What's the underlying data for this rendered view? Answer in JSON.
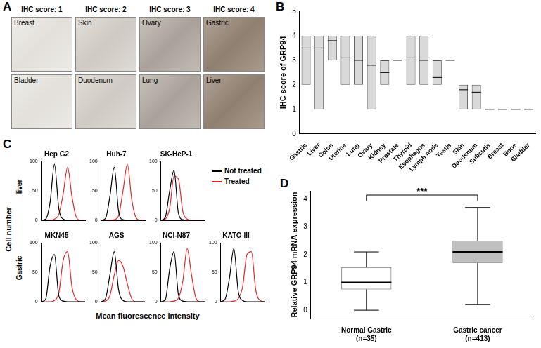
{
  "panel_labels": [
    "A",
    "B",
    "C",
    "D"
  ],
  "panel_a": {
    "scores": [
      "IHC score: 1",
      "IHC score: 2",
      "IHC score: 3",
      "IHC score: 4"
    ],
    "tissues": [
      [
        "Breast",
        "Skin",
        "Ovary",
        "Gastric"
      ],
      [
        "Bladder",
        "Duodenum",
        "Lung",
        "Liver"
      ]
    ]
  },
  "panel_c": {
    "y_label": "Cell number",
    "x_label": "Mean fluorescence intensity",
    "row_labels": [
      "liver",
      "Gastric"
    ]
  },
  "chart_data": [
    {
      "type": "box",
      "y_label": "IHC score of GRP94",
      "categories": [
        "Gastric",
        "Liver",
        "Colon",
        "Uterine",
        "Lung",
        "Ovary",
        "Kidney",
        "Prostate",
        "Thyroid",
        "Esophagus",
        "Lymph node",
        "Testis",
        "Skin",
        "Duodenum",
        "Subcutis",
        "Breast",
        "Bone",
        "Bladder"
      ],
      "min": [
        2,
        1,
        3,
        2,
        2,
        1,
        2,
        3,
        2,
        2,
        2,
        3,
        1,
        1,
        1,
        1,
        1,
        1
      ],
      "max": [
        4,
        4,
        4,
        4,
        4,
        4,
        3,
        3,
        4,
        4,
        3,
        3,
        2,
        2,
        1,
        1,
        1,
        1
      ],
      "median": [
        3.5,
        3.5,
        3.8,
        3.1,
        3,
        2.8,
        2.5,
        3,
        3.1,
        3,
        2.3,
        3,
        1.8,
        1.7,
        1,
        1,
        1,
        1
      ],
      "color": "#d9d9d9",
      "ylim": [
        0,
        5
      ],
      "yticks": [
        0,
        1,
        2,
        3,
        4,
        5
      ],
      "grid": false
    },
    {
      "type": "line",
      "title": "Hep G2",
      "x": [
        0,
        0.4,
        0.8,
        1.2,
        1.6,
        2.0,
        2.4,
        2.8,
        3.2,
        3.6,
        4.0
      ],
      "series": [
        {
          "name": "Not treated",
          "color": "#000000",
          "values": [
            0,
            2,
            30,
            95,
            20,
            2,
            0,
            0,
            0,
            0,
            0
          ]
        },
        {
          "name": "Treated",
          "color": "#e8262a",
          "values": [
            0,
            0,
            0,
            2,
            10,
            45,
            90,
            40,
            5,
            0,
            0
          ]
        }
      ],
      "xlim": [
        0,
        4
      ],
      "ylim": [
        0,
        100
      ],
      "yticks": [
        0,
        50,
        100
      ],
      "tick_labels": "y",
      "grid": false
    },
    {
      "type": "line",
      "title": "Huh-7",
      "x": [
        0,
        0.4,
        0.8,
        1.2,
        1.6,
        2.0,
        2.4,
        2.8,
        3.2,
        3.6,
        4.0
      ],
      "series": [
        {
          "name": "Not treated",
          "color": "#000000",
          "values": [
            0,
            3,
            40,
            90,
            15,
            1,
            0,
            0,
            0,
            0,
            0
          ]
        },
        {
          "name": "Treated",
          "color": "#e8262a",
          "values": [
            0,
            0,
            0,
            1,
            8,
            50,
            95,
            35,
            4,
            0,
            0
          ]
        }
      ],
      "xlim": [
        0,
        4
      ],
      "ylim": [
        0,
        100
      ],
      "yticks": [
        0,
        50,
        100
      ],
      "tick_labels": "y",
      "grid": false
    },
    {
      "type": "line",
      "title": "SK-HeP-1",
      "x": [
        0,
        0.4,
        0.8,
        1.2,
        1.6,
        2.0,
        2.4,
        2.8,
        3.2,
        3.6,
        4.0
      ],
      "series": [
        {
          "name": "Not treated",
          "color": "#000000",
          "values": [
            0,
            5,
            50,
            85,
            12,
            1,
            0,
            0,
            0,
            0,
            0
          ]
        },
        {
          "name": "Treated",
          "color": "#e8262a",
          "values": [
            0,
            2,
            20,
            75,
            70,
            15,
            2,
            0,
            0,
            0,
            0
          ]
        }
      ],
      "xlim": [
        0,
        4
      ],
      "ylim": [
        0,
        100
      ],
      "yticks": [
        0,
        50,
        100
      ],
      "tick_labels": "y",
      "grid": false,
      "legend": "right"
    },
    {
      "type": "line",
      "title": "MKN45",
      "x": [
        0,
        0.4,
        0.8,
        1.2,
        1.6,
        2.0,
        2.4,
        2.8,
        3.2,
        3.6,
        4.0
      ],
      "series": [
        {
          "name": "Not treated",
          "color": "#000000",
          "values": [
            0,
            4,
            60,
            80,
            10,
            1,
            0,
            0,
            0,
            0,
            0
          ]
        },
        {
          "name": "Treated",
          "color": "#e8262a",
          "values": [
            0,
            0,
            0,
            2,
            15,
            70,
            85,
            25,
            3,
            0,
            0
          ]
        }
      ],
      "xlim": [
        0,
        4
      ],
      "ylim": [
        0,
        100
      ],
      "yticks": [
        0,
        50,
        100
      ],
      "tick_labels": "y",
      "grid": false
    },
    {
      "type": "line",
      "title": "AGS",
      "x": [
        0,
        0.4,
        0.8,
        1.2,
        1.6,
        2.0,
        2.4,
        2.8,
        3.2,
        3.6,
        4.0
      ],
      "series": [
        {
          "name": "Not treated",
          "color": "#000000",
          "values": [
            0,
            5,
            45,
            85,
            20,
            2,
            0,
            0,
            0,
            0,
            0
          ]
        },
        {
          "name": "Treated",
          "color": "#e8262a",
          "values": [
            0,
            1,
            10,
            45,
            70,
            60,
            30,
            5,
            0,
            0,
            0
          ]
        }
      ],
      "xlim": [
        0,
        4
      ],
      "ylim": [
        0,
        100
      ],
      "yticks": [
        0,
        50,
        100
      ],
      "tick_labels": "y",
      "grid": false
    },
    {
      "type": "line",
      "title": "NCI-N87",
      "x": [
        0,
        0.4,
        0.8,
        1.2,
        1.6,
        2.0,
        2.4,
        2.8,
        3.2,
        3.6,
        4.0
      ],
      "series": [
        {
          "name": "Not treated",
          "color": "#000000",
          "values": [
            0,
            3,
            55,
            85,
            12,
            1,
            0,
            0,
            0,
            0,
            0
          ]
        },
        {
          "name": "Treated",
          "color": "#e8262a",
          "values": [
            0,
            0,
            0,
            1,
            6,
            35,
            90,
            45,
            6,
            0,
            0
          ]
        }
      ],
      "xlim": [
        0,
        4
      ],
      "ylim": [
        0,
        100
      ],
      "yticks": [
        0,
        50,
        100
      ],
      "tick_labels": "y",
      "grid": false
    },
    {
      "type": "line",
      "title": "KATO III",
      "x": [
        0,
        0.4,
        0.8,
        1.2,
        1.6,
        2.0,
        2.4,
        2.8,
        3.2,
        3.6,
        4.0
      ],
      "series": [
        {
          "name": "Not treated",
          "color": "#000000",
          "values": [
            0,
            4,
            40,
            90,
            18,
            2,
            0,
            0,
            0,
            0,
            0
          ]
        },
        {
          "name": "Treated",
          "color": "#e8262a",
          "values": [
            0,
            0,
            0,
            1,
            5,
            25,
            80,
            85,
            20,
            2,
            0
          ]
        }
      ],
      "xlim": [
        0,
        4
      ],
      "ylim": [
        0,
        100
      ],
      "yticks": [
        0,
        50,
        100
      ],
      "tick_labels": "y",
      "grid": false
    },
    {
      "type": "box",
      "y_label": "Relative GRP94 mRNA expression",
      "categories": [
        "Normal Gastric\n(n=35)",
        "Gastric cancer\n(n=413)"
      ],
      "min": [
        0,
        0.2
      ],
      "q1": [
        0.75,
        1.7
      ],
      "median": [
        1.0,
        2.1
      ],
      "q3": [
        1.55,
        2.5
      ],
      "max": [
        2.1,
        3.7
      ],
      "colors": [
        "#ffffff",
        "#bfbfbf"
      ],
      "annotation": "***",
      "ylim": [
        -0.3,
        4.3
      ],
      "yticks": [
        0,
        1,
        2,
        3,
        4
      ],
      "grid": false
    }
  ]
}
